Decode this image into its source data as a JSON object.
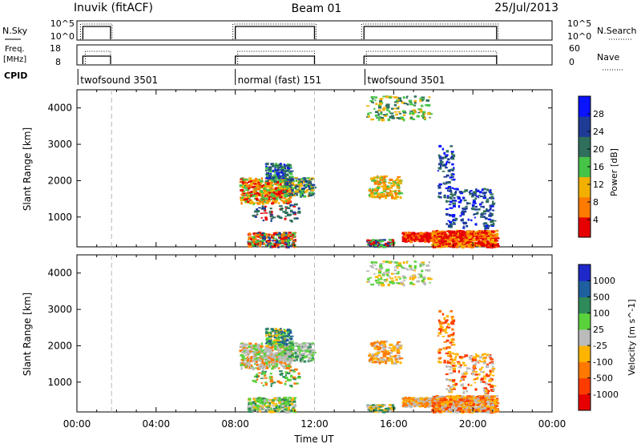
{
  "chart_data": [
    {
      "type": "line",
      "panel": "noise",
      "title": "Inuvik (fitACF)",
      "subtitle": "Beam 01",
      "date": "25/Jul/2013",
      "left_label": "N.Sky",
      "right_label": "N.Search",
      "left_ticks": [
        "10^5",
        "10^0"
      ],
      "right_ticks": [
        "10^5",
        "10^0"
      ],
      "active_intervals_h": [
        [
          0.3,
          1.7
        ],
        [
          8.0,
          12.0
        ],
        [
          14.5,
          21.2
        ]
      ]
    },
    {
      "type": "line",
      "panel": "frequency",
      "left_label_lines": [
        "Freq.",
        "[MHz]"
      ],
      "right_label": "Nave",
      "left_ticks": [
        "18",
        "8"
      ],
      "right_ticks": [
        "60",
        "0"
      ]
    },
    {
      "type": "table",
      "panel": "cpid",
      "label": "CPID",
      "modes": [
        {
          "name": "twofsound 3501",
          "start_h": 0.05
        },
        {
          "name": "normal (fast) 151",
          "start_h": 8.0
        },
        {
          "name": "twofsound 3501",
          "start_h": 14.55
        }
      ]
    },
    {
      "type": "heatmap",
      "panel": "power",
      "ylabel": "Slant Range [km]",
      "yticks": [
        1000,
        2000,
        3000,
        4000
      ],
      "ylim": [
        180,
        4500
      ],
      "xlim_h": [
        0,
        24
      ],
      "colorbar_label": "Power [dB]",
      "colorbar_ticks": [
        "4",
        "8",
        "12",
        "16",
        "20",
        "24",
        "28"
      ],
      "colors": [
        "#0a14ff",
        "#1e3c96",
        "#2f6f5b",
        "#46c448",
        "#f2b000",
        "#ff7b00",
        "#e60000"
      ]
    },
    {
      "type": "heatmap",
      "panel": "velocity",
      "ylabel": "Slant Range [km]",
      "yticks": [
        1000,
        2000,
        3000,
        4000
      ],
      "ylim": [
        180,
        4500
      ],
      "xlim_h": [
        0,
        24
      ],
      "colorbar_label": "Velocity [m s^-1]",
      "colorbar_ticks": [
        "1000",
        "500",
        "100",
        "25",
        "-25",
        "-100",
        "-500",
        "-1000"
      ],
      "colors": [
        "#1e28c8",
        "#1e5fa0",
        "#2f8a5a",
        "#5ad23c",
        "#bbbbbb",
        "#ffb400",
        "#ff7800",
        "#ff3c00",
        "#e60000"
      ]
    }
  ],
  "x_axis": {
    "label": "Time UT",
    "ticks": [
      "00:00",
      "04:00",
      "08:00",
      "12:00",
      "16:00",
      "20:00",
      "00:00"
    ]
  },
  "colors": {
    "frame": "#000000",
    "dashed_marker": "#bbbbbb"
  }
}
